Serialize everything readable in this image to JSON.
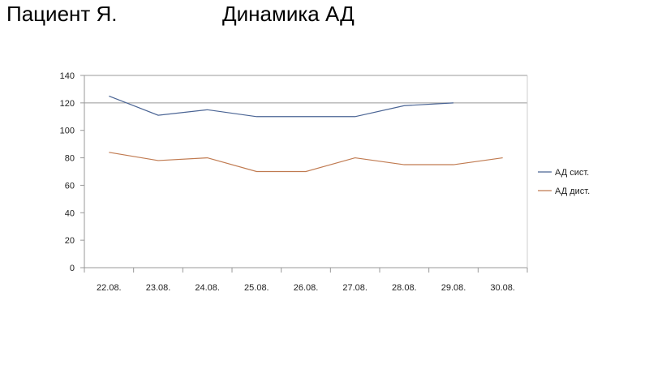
{
  "header": {
    "left": "Пациент Я.",
    "right": "Динамика АД"
  },
  "chart_data": {
    "type": "line",
    "title": "",
    "categories": [
      "22.08.",
      "23.08.",
      "24.08.",
      "25.08.",
      "26.08.",
      "27.08.",
      "28.08.",
      "29.08.",
      "30.08."
    ],
    "series": [
      {
        "name": "АД сист.",
        "color": "#4a6494",
        "values": [
          125,
          111,
          115,
          110,
          110,
          110,
          118,
          120,
          null
        ]
      },
      {
        "name": "АД дист.",
        "color": "#c07a50",
        "values": [
          84,
          78,
          80,
          70,
          70,
          80,
          75,
          75,
          80
        ]
      }
    ],
    "ylim": [
      0,
      140
    ],
    "yticks": [
      0,
      20,
      40,
      60,
      80,
      100,
      120,
      140
    ],
    "gridlines": [
      120,
      140
    ],
    "legend": "right"
  }
}
